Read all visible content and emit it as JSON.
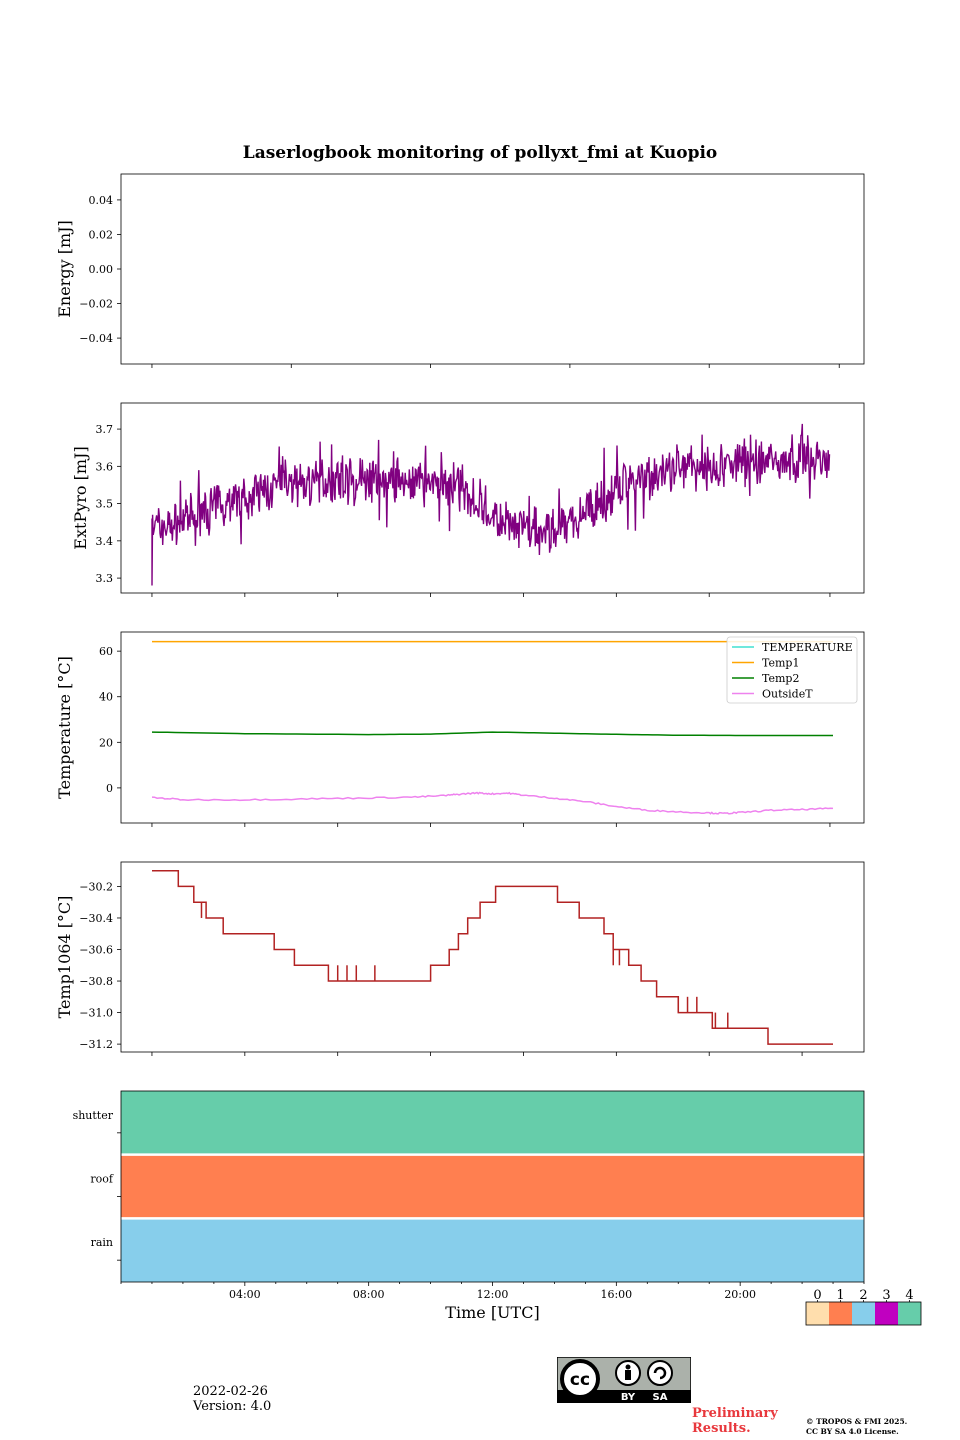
{
  "title": "Laserlogbook monitoring of pollyxt_fmi at Kuopio",
  "footer": {
    "date": "2022-02-26",
    "version": "Version: 4.0",
    "preliminary": "Preliminary Results.",
    "copyright_line1": "© TROPOS & FMI 2025.",
    "copyright_line2": "CC BY SA 4.0 License.",
    "license_badge": [
      "BY",
      "SA"
    ]
  },
  "colors": {
    "TEMPERATURE": "#40e0d0",
    "Temp1": "#ffa500",
    "Temp2": "#008000",
    "OutsideT": "#ee82ee",
    "ExtPyro": "#800080",
    "Temp1064": "#b22222",
    "shutter": "#66cdaa",
    "roof": "#ff7f50",
    "rain": "#87ceeb",
    "status_0": "#ffdead",
    "status_1": "#ff7f50",
    "status_2": "#87ceeb",
    "status_3": "#c000c0",
    "status_4": "#66cdaa"
  },
  "chart_data": [
    {
      "type": "line",
      "name": "energy",
      "ylabel": "Energy [mJ]",
      "ylim": [
        -0.055,
        0.055
      ],
      "yticks": [
        "0.04",
        "0.02",
        "0.00",
        "−0.02",
        "−0.04"
      ],
      "ytick_values": [
        0.04,
        0.02,
        0.0,
        -0.02,
        -0.04
      ],
      "series": []
    },
    {
      "type": "line",
      "name": "extpyro",
      "ylabel": "ExtPyro [mJ]",
      "ylim": [
        3.26,
        3.77
      ],
      "yticks": [
        "3.7",
        "3.6",
        "3.5",
        "3.4",
        "3.3"
      ],
      "ytick_values": [
        3.7,
        3.6,
        3.5,
        3.4,
        3.3
      ],
      "series": [
        {
          "name": "ExtPyro",
          "x": [
            1.0,
            1.5,
            2,
            2.5,
            3,
            3.5,
            4,
            4.5,
            5,
            5.5,
            6,
            6.5,
            7,
            7.5,
            8,
            8.5,
            9,
            9.5,
            10,
            10.5,
            11,
            11.5,
            12,
            12.5,
            13,
            13.5,
            14,
            14.5,
            15,
            15.5,
            16,
            16.5,
            17,
            17.5,
            18,
            18.5,
            19,
            19.5,
            20,
            20.5,
            21,
            21.5,
            22,
            22.5,
            22.9
          ],
          "values": [
            3.44,
            3.44,
            3.45,
            3.47,
            3.49,
            3.51,
            3.52,
            3.53,
            3.54,
            3.55,
            3.56,
            3.56,
            3.56,
            3.56,
            3.56,
            3.56,
            3.56,
            3.56,
            3.56,
            3.55,
            3.54,
            3.51,
            3.47,
            3.44,
            3.43,
            3.42,
            3.43,
            3.45,
            3.48,
            3.5,
            3.53,
            3.56,
            3.57,
            3.58,
            3.59,
            3.6,
            3.6,
            3.6,
            3.61,
            3.61,
            3.62,
            3.62,
            3.62,
            3.62,
            3.61
          ]
        }
      ]
    },
    {
      "type": "line",
      "name": "temperature",
      "ylabel": "Temperature [°C]",
      "ylim": [
        -15.4,
        68.4
      ],
      "yticks": [
        "60",
        "40",
        "20",
        "0"
      ],
      "ytick_values": [
        60,
        40,
        20,
        0
      ],
      "legend": [
        "TEMPERATURE",
        "Temp1",
        "Temp2",
        "OutsideT"
      ],
      "legend_position": "top-right",
      "series": [
        {
          "name": "Temp1",
          "x": [
            1,
            23
          ],
          "values": [
            64.2,
            64.2
          ]
        },
        {
          "name": "Temp2",
          "x": [
            1,
            4,
            8,
            10,
            12,
            14,
            16,
            18,
            20,
            23
          ],
          "values": [
            24.5,
            23.8,
            23.4,
            23.6,
            24.5,
            24.0,
            23.5,
            23.1,
            23.0,
            23.0
          ]
        },
        {
          "name": "OutsideT",
          "x": [
            1,
            2,
            4,
            6,
            8,
            9.5,
            10.5,
            11,
            11.5,
            12,
            12.5,
            13,
            14,
            15,
            16,
            17,
            18,
            19,
            19.5,
            20,
            21,
            22,
            23
          ],
          "values": [
            -4.2,
            -5.2,
            -5.2,
            -4.8,
            -4.4,
            -4.0,
            -3.3,
            -2.7,
            -2.2,
            -2.6,
            -2.3,
            -3.2,
            -4.5,
            -6.0,
            -8.2,
            -9.8,
            -10.5,
            -11.0,
            -11.2,
            -10.8,
            -9.8,
            -9.5,
            -9.0
          ]
        }
      ]
    },
    {
      "type": "line",
      "name": "temp1064",
      "ylabel": "Temp1064 [°C]",
      "ylim": [
        -31.25,
        -30.045
      ],
      "yticks": [
        "−30.2",
        "−30.4",
        "−30.6",
        "−30.8",
        "−31.0",
        "−31.2"
      ],
      "ytick_values": [
        -30.2,
        -30.4,
        -30.6,
        -30.8,
        -31.0,
        -31.2
      ],
      "series": [
        {
          "name": "Temp1064",
          "x": [
            1.0,
            1.85,
            1.85,
            2.35,
            2.35,
            2.75,
            2.75,
            3.3,
            3.3,
            4.95,
            4.95,
            5.6,
            5.6,
            6.7,
            6.7,
            10.0,
            10.0,
            10.6,
            10.6,
            10.9,
            10.9,
            11.2,
            11.2,
            11.6,
            11.6,
            12.1,
            12.1,
            14.1,
            14.1,
            14.8,
            14.8,
            15.6,
            15.6,
            15.9,
            15.9,
            16.4,
            16.4,
            16.8,
            16.8,
            17.3,
            17.3,
            18.0,
            18.0,
            19.1,
            19.1,
            20.9,
            20.9,
            23.0
          ],
          "values": [
            -30.1,
            -30.1,
            -30.2,
            -30.2,
            -30.3,
            -30.3,
            -30.4,
            -30.4,
            -30.5,
            -30.5,
            -30.6,
            -30.6,
            -30.7,
            -30.7,
            -30.8,
            -30.8,
            -30.7,
            -30.7,
            -30.6,
            -30.6,
            -30.5,
            -30.5,
            -30.4,
            -30.4,
            -30.3,
            -30.3,
            -30.2,
            -30.2,
            -30.3,
            -30.3,
            -30.4,
            -30.4,
            -30.5,
            -30.5,
            -30.6,
            -30.6,
            -30.7,
            -30.7,
            -30.8,
            -30.8,
            -30.9,
            -30.9,
            -31.0,
            -31.0,
            -31.1,
            -31.1,
            -31.2,
            -31.2
          ]
        }
      ]
    },
    {
      "type": "heatmap",
      "name": "status",
      "xlabel": "Time [UTC]",
      "xlim_hours": [
        0,
        24
      ],
      "xticks": [
        "04:00",
        "08:00",
        "12:00",
        "16:00",
        "20:00"
      ],
      "xtick_values": [
        4,
        8,
        12,
        16,
        20
      ],
      "rows": [
        "shutter",
        "roof",
        "rain"
      ],
      "row_status": [
        4,
        1,
        2
      ],
      "colorbar_ticks": [
        "0",
        "1",
        "2",
        "3",
        "4"
      ]
    }
  ]
}
